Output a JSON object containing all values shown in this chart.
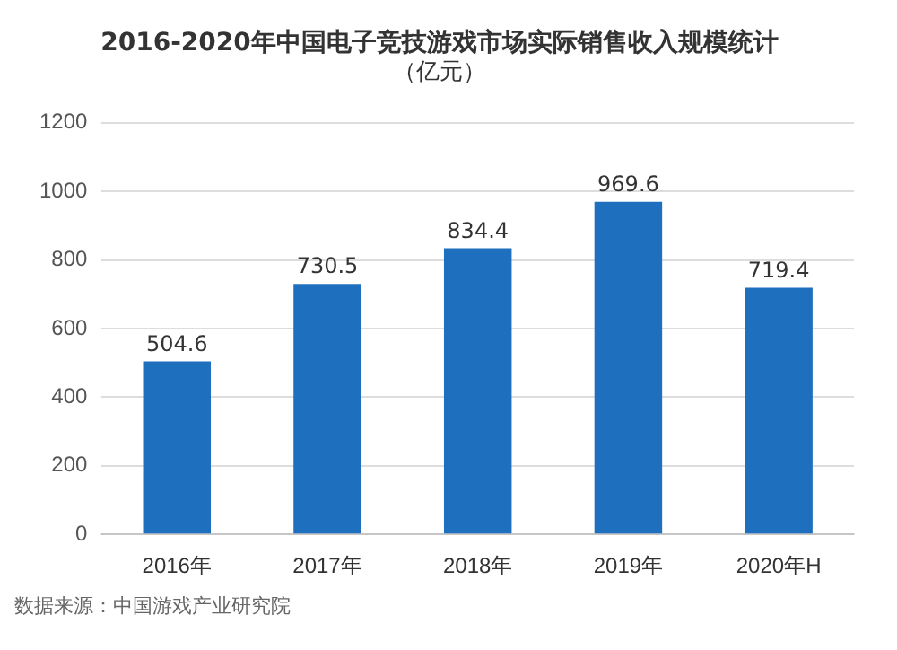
{
  "chart_data": {
    "type": "bar",
    "title": "2016-2020年中国电子竞技游戏市场实际销售收入规模统计",
    "subtitle": "（亿元）",
    "categories": [
      "2016年",
      "2017年",
      "2018年",
      "2019年",
      "2020年H"
    ],
    "values": [
      504.6,
      730.5,
      834.4,
      969.6,
      719.4
    ],
    "color": "#1f6fbf",
    "ylim": [
      0,
      1200
    ],
    "yticks": [
      0,
      200,
      400,
      600,
      800,
      1000,
      1200
    ],
    "grid": "y",
    "data_labels": true,
    "legend": false,
    "annotations": [
      "数据来源：中国游戏产业研究院"
    ]
  }
}
